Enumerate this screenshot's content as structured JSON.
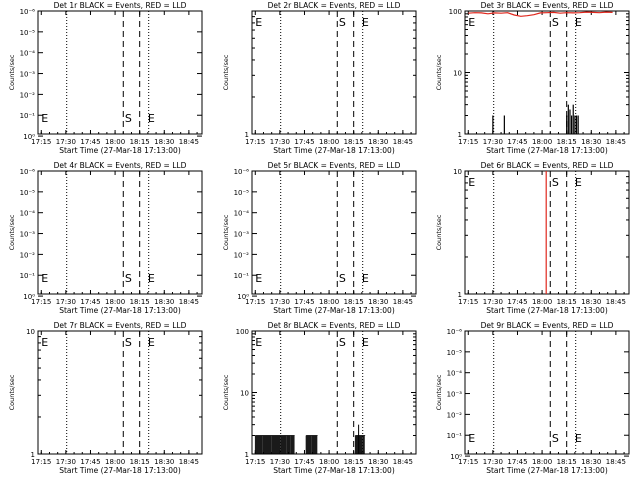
{
  "figure": {
    "xlabel": "Start Time (27-Mar-18 17:13:00)",
    "ylabel": "Counts/sec",
    "x_tick_labels": [
      "17:15",
      "17:30",
      "17:45",
      "18:00",
      "18:15",
      "18:30",
      "18:45"
    ],
    "colors": {
      "events": "#000000",
      "lld": "#e0261c",
      "axes": "#000000",
      "background": "#ffffff"
    }
  },
  "chart_data": [
    {
      "type": "line",
      "title": "Det 1r BLACK = Events, RED = LLD",
      "xlabel": "Start Time (27-Mar-18 17:13:00)",
      "ylabel": "Counts/sec",
      "y_scale": "log",
      "y_tick_labels": [
        "10⁰",
        "10⁻¹",
        "10⁻²",
        "10⁻³",
        "10⁻⁴",
        "10⁻⁵",
        "10⁻⁶"
      ],
      "y_tick_exponents": [
        0,
        -1,
        -2,
        -3,
        -4,
        -5,
        -6
      ],
      "ylim_exp": [
        -0.1,
        -6
      ],
      "dotted_lines_min": [
        17.5,
        67.5
      ],
      "dashed_lines_min": [
        52,
        62
      ],
      "markers": [
        {
          "label": "E",
          "x_min": 2
        },
        {
          "label": "S",
          "x_min": 53
        },
        {
          "label": "E",
          "x_min": 67
        }
      ],
      "marker_y_frac": 0.86,
      "series": []
    },
    {
      "type": "line",
      "title": "Det 2r BLACK = Events, RED = LLD",
      "xlabel": "Start Time (27-Mar-18 17:13:00)",
      "ylabel": "Counts/sec",
      "y_scale": "log",
      "y_tick_labels": [
        "1"
      ],
      "y_tick_values": [
        1
      ],
      "ylim": [
        1,
        10
      ],
      "dotted_lines_min": [
        17.5,
        67.5
      ],
      "dashed_lines_min": [
        52,
        62
      ],
      "markers": [
        {
          "label": "E",
          "x_min": 2
        },
        {
          "label": "S",
          "x_min": 53
        },
        {
          "label": "E",
          "x_min": 67
        }
      ],
      "marker_y_frac": 0.08,
      "series": []
    },
    {
      "type": "line",
      "title": "Det 3r BLACK = Events, RED = LLD",
      "xlabel": "Start Time (27-Mar-18 17:13:00)",
      "ylabel": "Counts/sec",
      "y_scale": "log",
      "y_tick_labels": [
        "1",
        "10",
        "100"
      ],
      "y_tick_values": [
        1,
        10,
        100
      ],
      "ylim": [
        1,
        100
      ],
      "dotted_lines_min": [
        17.5,
        67.5
      ],
      "dashed_lines_min": [
        52,
        62
      ],
      "markers": [
        {
          "label": "E",
          "x_min": 2
        },
        {
          "label": "S",
          "x_min": 53
        },
        {
          "label": "E",
          "x_min": 67
        }
      ],
      "marker_y_frac": 0.08,
      "series": [
        {
          "kind": "lld",
          "x_min": [
            2,
            6,
            10,
            14,
            18,
            22,
            26,
            30,
            34,
            38,
            42,
            46,
            50,
            54,
            58,
            62,
            66,
            70,
            74,
            78,
            82,
            86,
            90
          ],
          "y": [
            92,
            94,
            93,
            90,
            93,
            92,
            94,
            86,
            82,
            84,
            87,
            93,
            94,
            95,
            92,
            94,
            93,
            94,
            96,
            95,
            94,
            96,
            95
          ]
        },
        {
          "kind": "events",
          "x_min": [
            17,
            24,
            62,
            63,
            64,
            65,
            66,
            67,
            68,
            69
          ],
          "y": [
            2,
            2,
            2,
            3,
            2.5,
            2,
            3,
            2,
            2,
            2
          ]
        }
      ]
    },
    {
      "type": "line",
      "title": "Det 4r BLACK = Events, RED = LLD",
      "xlabel": "Start Time (27-Mar-18 17:13:00)",
      "ylabel": "Counts/sec",
      "y_scale": "log",
      "y_tick_labels": [
        "10⁰",
        "10⁻¹",
        "10⁻²",
        "10⁻³",
        "10⁻⁴",
        "10⁻⁵",
        "10⁻⁶"
      ],
      "y_tick_exponents": [
        0,
        -1,
        -2,
        -3,
        -4,
        -5,
        -6
      ],
      "ylim_exp": [
        -0.1,
        -6
      ],
      "dotted_lines_min": [
        17.5,
        67.5
      ],
      "dashed_lines_min": [
        52,
        62
      ],
      "markers": [
        {
          "label": "E",
          "x_min": 2
        },
        {
          "label": "S",
          "x_min": 53
        },
        {
          "label": "E",
          "x_min": 67
        }
      ],
      "marker_y_frac": 0.86,
      "series": []
    },
    {
      "type": "line",
      "title": "Det 5r BLACK = Events, RED = LLD",
      "xlabel": "Start Time (27-Mar-18 17:13:00)",
      "ylabel": "Counts/sec",
      "y_scale": "log",
      "y_tick_labels": [
        "10⁰",
        "10⁻¹",
        "10⁻²",
        "10⁻³",
        "10⁻⁴",
        "10⁻⁵",
        "10⁻⁶"
      ],
      "y_tick_exponents": [
        0,
        -1,
        -2,
        -3,
        -4,
        -5,
        -6
      ],
      "ylim_exp": [
        -0.1,
        -6
      ],
      "dotted_lines_min": [
        17.5,
        67.5
      ],
      "dashed_lines_min": [
        52,
        62
      ],
      "markers": [
        {
          "label": "E",
          "x_min": 2
        },
        {
          "label": "S",
          "x_min": 53
        },
        {
          "label": "E",
          "x_min": 67
        }
      ],
      "marker_y_frac": 0.86,
      "series": []
    },
    {
      "type": "line",
      "title": "Det 6r BLACK = Events, RED = LLD",
      "xlabel": "Start Time (27-Mar-18 17:13:00)",
      "ylabel": "Counts/sec",
      "y_scale": "log",
      "y_tick_labels": [
        "1",
        "10"
      ],
      "y_tick_values": [
        1,
        10
      ],
      "ylim": [
        1,
        10
      ],
      "dotted_lines_min": [
        17.5,
        67.5
      ],
      "dashed_lines_min": [
        52,
        62
      ],
      "markers": [
        {
          "label": "E",
          "x_min": 2
        },
        {
          "label": "S",
          "x_min": 53
        },
        {
          "label": "E",
          "x_min": 67
        }
      ],
      "marker_y_frac": 0.08,
      "series": [
        {
          "kind": "lld",
          "x_min": [
            49.5,
            49.5
          ],
          "y": [
            1,
            10
          ]
        }
      ]
    },
    {
      "type": "line",
      "title": "Det 7r BLACK = Events, RED = LLD",
      "xlabel": "Start Time (27-Mar-18 17:13:00)",
      "ylabel": "Counts/sec",
      "y_scale": "log",
      "y_tick_labels": [
        "1",
        "10"
      ],
      "y_tick_values": [
        1,
        10
      ],
      "ylim": [
        1,
        10
      ],
      "dotted_lines_min": [
        17.5,
        67.5
      ],
      "dashed_lines_min": [
        52,
        62
      ],
      "markers": [
        {
          "label": "E",
          "x_min": 2
        },
        {
          "label": "S",
          "x_min": 53
        },
        {
          "label": "E",
          "x_min": 67
        }
      ],
      "marker_y_frac": 0.08,
      "series": []
    },
    {
      "type": "line",
      "title": "Det 8r BLACK = Events, RED = LLD",
      "xlabel": "Start Time (27-Mar-18 17:13:00)",
      "ylabel": "Counts/sec",
      "y_scale": "log",
      "y_tick_labels": [
        "1",
        "10",
        "100"
      ],
      "y_tick_values": [
        1,
        10,
        100
      ],
      "ylim": [
        1,
        100
      ],
      "dotted_lines_min": [
        17.5,
        67.5
      ],
      "dashed_lines_min": [
        52,
        62
      ],
      "markers": [
        {
          "label": "E",
          "x_min": 2
        },
        {
          "label": "S",
          "x_min": 53
        },
        {
          "label": "E",
          "x_min": 67
        }
      ],
      "marker_y_frac": 0.08,
      "series": [
        {
          "kind": "events",
          "activity_windows_min": [
            [
              2,
              26
            ],
            [
              33,
              40
            ],
            [
              63,
              69
            ]
          ],
          "level": 2,
          "peak": {
            "x_min": 65,
            "y": 3
          }
        }
      ]
    },
    {
      "type": "line",
      "title": "Det 9r BLACK = Events, RED = LLD",
      "xlabel": "Start Time (27-Mar-18 17:13:00)",
      "ylabel": "Counts/sec",
      "y_scale": "log",
      "y_tick_labels": [
        "10⁰",
        "10⁻¹",
        "10⁻²",
        "10⁻³",
        "10⁻⁴",
        "10⁻⁵",
        "10⁻⁶"
      ],
      "y_tick_exponents": [
        0,
        -1,
        -2,
        -3,
        -4,
        -5,
        -6
      ],
      "ylim_exp": [
        -0.1,
        -6
      ],
      "dotted_lines_min": [
        17.5,
        67.5
      ],
      "dashed_lines_min": [
        52,
        62
      ],
      "markers": [
        {
          "label": "E",
          "x_min": 2
        },
        {
          "label": "S",
          "x_min": 53
        },
        {
          "label": "E",
          "x_min": 67
        }
      ],
      "marker_y_frac": 0.86,
      "series": []
    }
  ]
}
